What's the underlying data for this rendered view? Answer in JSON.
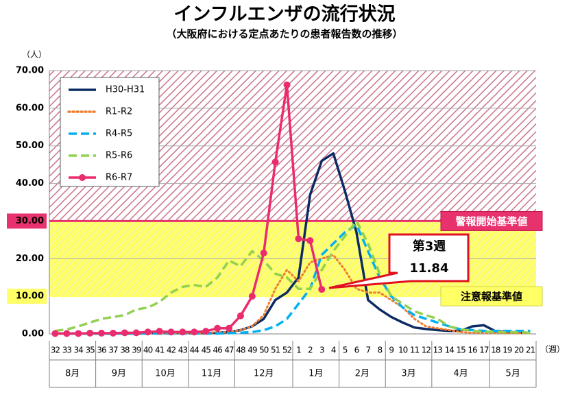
{
  "chart_data": {
    "type": "line",
    "title": "インフルエンザの流行状況",
    "subtitle": "（大阪府における定点あたりの患者報告数の推移）",
    "y_unit": "（人）",
    "x_unit": "（週）",
    "categories": [
      "32",
      "33",
      "34",
      "35",
      "36",
      "37",
      "38",
      "39",
      "40",
      "41",
      "42",
      "43",
      "44",
      "45",
      "46",
      "47",
      "48",
      "49",
      "50",
      "51",
      "52",
      "1",
      "2",
      "3",
      "4",
      "5",
      "6",
      "7",
      "8",
      "9",
      "10",
      "11",
      "12",
      "13",
      "14",
      "15",
      "16",
      "17",
      "18",
      "19",
      "20",
      "21"
    ],
    "months": [
      "8月",
      "9月",
      "10月",
      "11月",
      "12月",
      "1月",
      "2月",
      "3月",
      "4月",
      "5月"
    ],
    "month_spans": [
      4,
      4,
      4,
      4,
      5,
      4,
      4,
      4,
      5,
      4
    ],
    "ylim": [
      0,
      70
    ],
    "yticks": [
      {
        "value": 0,
        "label": "0.00"
      },
      {
        "value": 10,
        "label": "10.00"
      },
      {
        "value": 20,
        "label": "20.00"
      },
      {
        "value": 30,
        "label": "30.00"
      },
      {
        "value": 40,
        "label": "40.00"
      },
      {
        "value": 50,
        "label": "50.00"
      },
      {
        "value": 60,
        "label": "60.00"
      },
      {
        "value": 70,
        "label": "70.00"
      }
    ],
    "grid": true,
    "thresholds": [
      {
        "text": "警報開始基準値",
        "value": 30,
        "color": "#e8326e"
      },
      {
        "text": "注意報基準値",
        "value": 10,
        "color": "#ffff66"
      }
    ],
    "callout": {
      "lines": [
        "第3週",
        "11.84"
      ]
    },
    "series": [
      {
        "name": "H30-H31",
        "color": "#0d2b63",
        "style": "solid",
        "marker": false,
        "values": [
          0.1,
          0.1,
          0.1,
          0.1,
          0.1,
          0.1,
          0.1,
          0.1,
          0.2,
          0.2,
          0.2,
          0.2,
          0.2,
          0.2,
          0.3,
          0.5,
          1,
          2,
          4,
          9,
          11,
          15,
          37,
          46,
          48,
          38,
          27,
          9,
          6.5,
          4.5,
          3,
          1.7,
          1.3,
          1,
          0.8,
          0.8,
          2,
          2.3,
          0.7,
          0.5,
          0.4,
          0.3
        ]
      },
      {
        "name": "R1-R2",
        "color": "#ed7d31",
        "style": "dotted",
        "marker": false,
        "values": [
          0.1,
          0.1,
          0.1,
          0.1,
          0.1,
          0.1,
          0.1,
          0.1,
          0.2,
          0.2,
          0.2,
          0.2,
          0.2,
          0.3,
          0.4,
          0.5,
          1,
          2,
          5,
          12,
          17,
          14,
          19,
          20,
          21,
          17,
          12,
          11,
          11,
          9,
          7,
          4,
          2,
          1.5,
          1,
          0.5,
          0.3,
          0.3,
          0.2,
          0.2,
          0.2,
          0.2
        ]
      },
      {
        "name": "R4-R5",
        "color": "#00b0f0",
        "style": "dashed",
        "marker": false,
        "values": [
          0.1,
          0.1,
          0.1,
          0.1,
          0.1,
          0.1,
          0.1,
          0.1,
          0.1,
          0.1,
          0.1,
          0.1,
          0.1,
          0.1,
          0.1,
          0.2,
          0.3,
          0.5,
          1,
          2,
          4,
          8,
          12,
          21,
          24,
          27,
          29,
          22,
          15,
          10,
          7,
          5,
          4,
          3,
          2,
          1.2,
          1,
          0.8,
          0.8,
          0.8,
          0.8,
          0.8
        ]
      },
      {
        "name": "R5-R6",
        "color": "#92d050",
        "style": "dashed",
        "marker": false,
        "values": [
          0.8,
          1.2,
          2,
          3,
          4,
          4.5,
          5,
          6.5,
          7,
          8.5,
          11,
          12.5,
          13,
          12.5,
          15,
          19.5,
          18,
          22,
          19.5,
          16,
          15,
          12,
          12,
          17,
          22,
          26,
          30,
          24,
          16,
          10,
          8,
          6,
          5,
          4,
          2,
          1.2,
          0.8,
          0.6,
          0.5,
          0.4,
          0.4,
          0.3
        ]
      },
      {
        "name": "R6-R7",
        "color": "#ea2c6e",
        "style": "solid",
        "marker": true,
        "values": [
          0.1,
          0.1,
          0.1,
          0.2,
          0.2,
          0.2,
          0.3,
          0.3,
          0.5,
          0.7,
          0.5,
          0.5,
          0.5,
          0.7,
          1.5,
          1.5,
          4.8,
          10,
          21.5,
          45.7,
          66.2,
          25.3,
          24.8,
          11.84,
          null,
          null,
          null,
          null,
          null,
          null,
          null,
          null,
          null,
          null,
          null,
          null,
          null,
          null,
          null,
          null,
          null,
          null
        ]
      }
    ]
  }
}
